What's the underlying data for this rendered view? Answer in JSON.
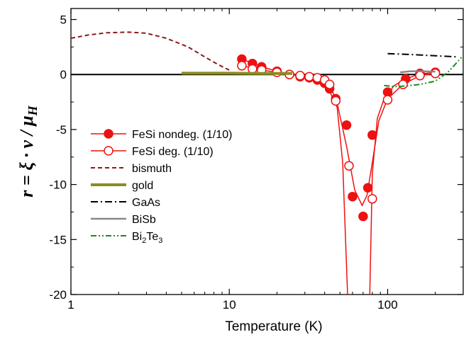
{
  "chart_data": {
    "type": "line",
    "xscale": "log",
    "xlim": [
      1,
      300
    ],
    "ylim": [
      -20,
      6
    ],
    "xticks": [
      1,
      10,
      100
    ],
    "xtick_labels": [
      "1",
      "10",
      "100"
    ],
    "yticks": [
      5,
      0,
      -5,
      -10,
      -15,
      -20
    ],
    "ytick_labels": [
      "5",
      "0",
      "-5",
      "-10",
      "-15",
      "-20"
    ],
    "xlabel": "Temperature (K)",
    "ylabel": {
      "prefix": "r = ",
      "xi": "ξ",
      "dot": " · ",
      "nu": "ν",
      "slash": " / ",
      "mu": "μ",
      "sub": "H"
    },
    "legend_placement": "left",
    "zero_line": true,
    "series": [
      {
        "name": "FeSi nondeg. (1/10)",
        "style": "filled-circle-line",
        "color": "#ee1111",
        "points": [
          [
            12,
            1.4
          ],
          [
            14,
            1.0
          ],
          [
            16,
            0.7
          ],
          [
            20,
            0.3
          ],
          [
            24,
            0.0
          ],
          [
            28,
            -0.2
          ],
          [
            32,
            -0.3
          ],
          [
            36,
            -0.5
          ],
          [
            40,
            -0.8
          ],
          [
            43,
            -1.3
          ],
          [
            47,
            -2.2
          ],
          [
            55,
            -4.6
          ],
          [
            60,
            -11.1
          ],
          [
            70,
            -12.9
          ],
          [
            75,
            -10.3
          ],
          [
            80,
            -5.5
          ],
          [
            100,
            -1.6
          ],
          [
            130,
            -0.4
          ],
          [
            160,
            0.1
          ],
          [
            200,
            0.2
          ]
        ],
        "curve": [
          [
            12,
            1.4
          ],
          [
            16,
            0.7
          ],
          [
            20,
            0.3
          ],
          [
            28,
            -0.2
          ],
          [
            36,
            -0.5
          ],
          [
            42,
            -1.2
          ],
          [
            48,
            -3.0
          ],
          [
            52,
            -8.0
          ],
          [
            56,
            -20.5
          ]
        ],
        "curve2": [
          [
            77,
            -20.5
          ],
          [
            80,
            -9.0
          ],
          [
            86,
            -4.0
          ],
          [
            95,
            -2.2
          ],
          [
            110,
            -1.0
          ],
          [
            130,
            -0.4
          ],
          [
            160,
            0.05
          ],
          [
            200,
            0.2
          ]
        ]
      },
      {
        "name": "FeSi deg. (1/10)",
        "style": "open-circle-line",
        "color": "#ee1111",
        "points": [
          [
            12,
            0.8
          ],
          [
            14,
            0.5
          ],
          [
            16,
            0.4
          ],
          [
            20,
            0.2
          ],
          [
            24,
            0.0
          ],
          [
            28,
            -0.1
          ],
          [
            32,
            -0.2
          ],
          [
            36,
            -0.3
          ],
          [
            40,
            -0.5
          ],
          [
            43,
            -0.9
          ],
          [
            47,
            -2.4
          ],
          [
            57,
            -8.3
          ],
          [
            80,
            -11.3
          ],
          [
            100,
            -2.3
          ],
          [
            125,
            -0.9
          ],
          [
            160,
            -0.1
          ],
          [
            200,
            0.1
          ]
        ],
        "curve": [
          [
            12,
            0.8
          ],
          [
            16,
            0.4
          ],
          [
            20,
            0.2
          ],
          [
            28,
            -0.1
          ],
          [
            36,
            -0.3
          ],
          [
            43,
            -0.9
          ],
          [
            48,
            -2.6
          ],
          [
            55,
            -6.5
          ],
          [
            62,
            -10.5
          ],
          [
            69,
            -11.9
          ],
          [
            74,
            -11.0
          ],
          [
            80,
            -8.0
          ],
          [
            88,
            -4.2
          ],
          [
            100,
            -2.2
          ],
          [
            125,
            -0.9
          ],
          [
            160,
            -0.1
          ],
          [
            200,
            0.1
          ]
        ]
      },
      {
        "name": "bismuth",
        "style": "dash",
        "color": "#8b1a1a",
        "points": [
          [
            1,
            3.3
          ],
          [
            1.3,
            3.6
          ],
          [
            1.7,
            3.8
          ],
          [
            2.3,
            3.85
          ],
          [
            3,
            3.75
          ],
          [
            4,
            3.3
          ],
          [
            5.5,
            2.5
          ],
          [
            7,
            1.6
          ],
          [
            8.5,
            0.9
          ],
          [
            10,
            0.4
          ]
        ]
      },
      {
        "name": "gold",
        "style": "thick",
        "color": "#8c8c20",
        "points": [
          [
            5,
            0.12
          ],
          [
            10,
            0.12
          ],
          [
            15,
            0.1
          ],
          [
            25,
            0.1
          ]
        ]
      },
      {
        "name": "GaAs",
        "style": "dashdot",
        "color": "#000000",
        "points": [
          [
            100,
            1.9
          ],
          [
            150,
            1.8
          ],
          [
            200,
            1.7
          ],
          [
            280,
            1.6
          ]
        ]
      },
      {
        "name": "BiSb",
        "style": "solid",
        "color": "#888888",
        "points": [
          [
            120,
            0.2
          ],
          [
            140,
            0.3
          ],
          [
            165,
            0.3
          ],
          [
            200,
            0.25
          ]
        ]
      },
      {
        "name": "Bi2Te3",
        "name_parts": [
          "Bi",
          "2",
          "Te",
          "3"
        ],
        "style": "dashdotdot",
        "color": "#1f8a1f",
        "points": [
          [
            95,
            -1.0
          ],
          [
            110,
            -1.1
          ],
          [
            130,
            -1.05
          ],
          [
            160,
            -0.9
          ],
          [
            200,
            -0.6
          ],
          [
            240,
            0.2
          ],
          [
            270,
            1.0
          ],
          [
            290,
            1.5
          ],
          [
            300,
            1.7
          ]
        ]
      }
    ]
  }
}
